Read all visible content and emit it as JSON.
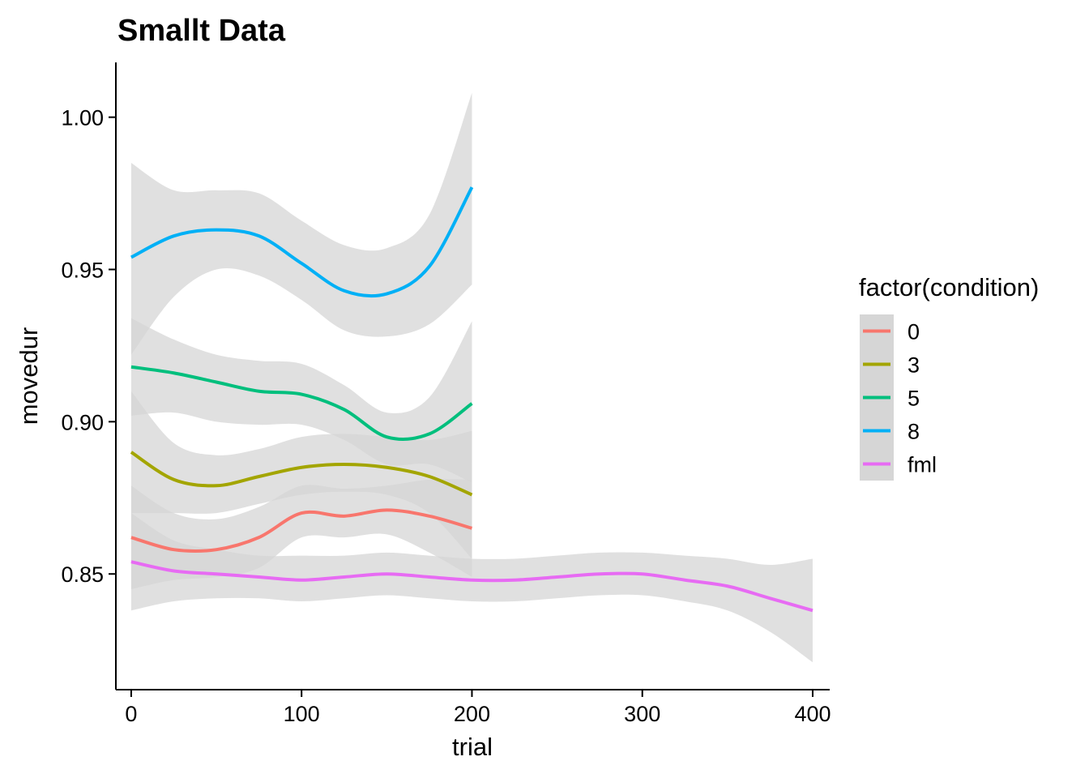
{
  "chart_data": {
    "type": "line",
    "title": "Smallt Data",
    "xlabel": "trial",
    "ylabel": "movedur",
    "xlim": [
      -9,
      410
    ],
    "ylim": [
      0.812,
      1.018
    ],
    "x_ticks": [
      0,
      100,
      200,
      300,
      400
    ],
    "y_ticks": [
      0.85,
      0.9,
      0.95,
      1.0
    ],
    "x_tick_labels": [
      "0",
      "100",
      "200",
      "300",
      "400"
    ],
    "y_tick_labels": [
      "0.85",
      "0.90",
      "0.95",
      "1.00"
    ],
    "grid": false,
    "legend": {
      "title": "factor(condition)",
      "position": "right"
    },
    "band_color": "#d6d6d6",
    "series": [
      {
        "name": "0",
        "color": "#F8766D",
        "x": [
          0,
          25,
          50,
          75,
          100,
          125,
          150,
          175,
          200
        ],
        "y": [
          0.862,
          0.858,
          0.858,
          0.862,
          0.87,
          0.869,
          0.871,
          0.869,
          0.865
        ],
        "lower": [
          0.845,
          0.848,
          0.849,
          0.852,
          0.862,
          0.862,
          0.863,
          0.857,
          0.849
        ],
        "upper": [
          0.879,
          0.87,
          0.868,
          0.872,
          0.879,
          0.878,
          0.879,
          0.881,
          0.881
        ]
      },
      {
        "name": "3",
        "color": "#A3A500",
        "x": [
          0,
          25,
          50,
          75,
          100,
          125,
          150,
          175,
          200
        ],
        "y": [
          0.89,
          0.881,
          0.879,
          0.882,
          0.885,
          0.886,
          0.885,
          0.882,
          0.876
        ],
        "lower": [
          0.87,
          0.87,
          0.87,
          0.873,
          0.876,
          0.877,
          0.876,
          0.87,
          0.855
        ],
        "upper": [
          0.91,
          0.893,
          0.889,
          0.891,
          0.895,
          0.896,
          0.895,
          0.894,
          0.897
        ]
      },
      {
        "name": "5",
        "color": "#00BF7D",
        "x": [
          0,
          25,
          50,
          75,
          100,
          125,
          150,
          175,
          200
        ],
        "y": [
          0.918,
          0.916,
          0.913,
          0.91,
          0.909,
          0.904,
          0.895,
          0.896,
          0.906
        ],
        "lower": [
          0.902,
          0.903,
          0.9,
          0.899,
          0.899,
          0.894,
          0.886,
          0.886,
          0.88
        ],
        "upper": [
          0.934,
          0.927,
          0.922,
          0.92,
          0.919,
          0.912,
          0.903,
          0.908,
          0.933
        ]
      },
      {
        "name": "8",
        "color": "#00B0F6",
        "x": [
          0,
          25,
          50,
          75,
          100,
          125,
          150,
          175,
          200
        ],
        "y": [
          0.954,
          0.961,
          0.963,
          0.961,
          0.952,
          0.943,
          0.942,
          0.951,
          0.977
        ],
        "lower": [
          0.922,
          0.941,
          0.95,
          0.948,
          0.94,
          0.93,
          0.928,
          0.932,
          0.945
        ],
        "upper": [
          0.985,
          0.976,
          0.976,
          0.975,
          0.966,
          0.958,
          0.957,
          0.968,
          1.008
        ]
      },
      {
        "name": "fml",
        "color": "#E76BF3",
        "x": [
          0,
          25,
          50,
          75,
          100,
          125,
          150,
          175,
          200,
          225,
          250,
          275,
          300,
          325,
          350,
          375,
          400
        ],
        "y": [
          0.854,
          0.851,
          0.85,
          0.849,
          0.848,
          0.849,
          0.85,
          0.849,
          0.848,
          0.848,
          0.849,
          0.85,
          0.85,
          0.848,
          0.846,
          0.842,
          0.838
        ],
        "lower": [
          0.838,
          0.841,
          0.842,
          0.842,
          0.841,
          0.842,
          0.843,
          0.842,
          0.841,
          0.841,
          0.842,
          0.843,
          0.843,
          0.841,
          0.838,
          0.831,
          0.821
        ],
        "upper": [
          0.87,
          0.861,
          0.858,
          0.856,
          0.856,
          0.856,
          0.857,
          0.856,
          0.855,
          0.855,
          0.856,
          0.857,
          0.857,
          0.856,
          0.855,
          0.853,
          0.855
        ]
      }
    ]
  }
}
